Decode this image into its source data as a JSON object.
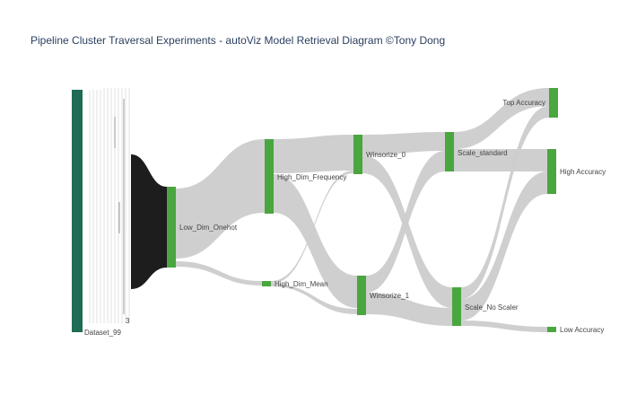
{
  "title": "Pipeline Cluster Traversal Experiments - autoViz Model Retrieval Diagram  ©Tony Dong",
  "colors": {
    "node": "#4aa63f",
    "dataset_node": "#1f6b55",
    "link": "#cccccc",
    "dense_link": "#111111",
    "title": "#2a3f5f",
    "label": "#444444"
  },
  "nodes": [
    {
      "id": "dataset_99",
      "label": "Dataset_99"
    },
    {
      "id": "small_3",
      "label": "3"
    },
    {
      "id": "low_dim_onehot",
      "label": "Low_Dim_Onehot"
    },
    {
      "id": "high_dim_frequency",
      "label": "High_Dim_Frequency"
    },
    {
      "id": "high_dim_mean",
      "label": "High_Dim_Mean"
    },
    {
      "id": "winsorize_0",
      "label": "Winsorize_0"
    },
    {
      "id": "winsorize_1",
      "label": "Winsorize_1"
    },
    {
      "id": "scale_standard",
      "label": "Scale_standard"
    },
    {
      "id": "scale_no_scaler",
      "label": "Scale_No Scaler"
    },
    {
      "id": "top_accuracy",
      "label": "Top Accuracy"
    },
    {
      "id": "high_accuracy",
      "label": "High Accuracy"
    },
    {
      "id": "low_accuracy",
      "label": "Low Accuracy"
    }
  ]
}
